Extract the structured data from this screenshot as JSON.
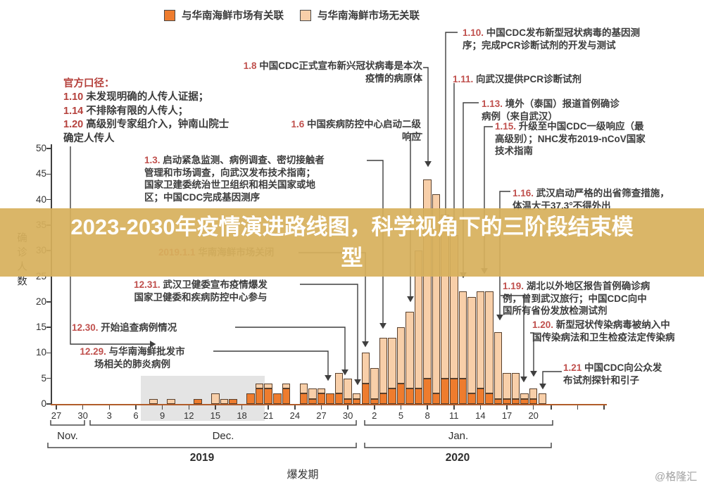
{
  "overlay": {
    "title": "2023-2030年疫情演进路线图，科学视角下的三阶段结束模型",
    "title_lines": [
      "2023-2030年疫情演进路线图，科学视角下的三阶段结束模",
      "型"
    ],
    "band_color": "rgba(215,176,93,0.93)"
  },
  "watermark": "@格隆汇",
  "legend": {
    "linked_label": "与华南海鲜市场有关联",
    "unlinked_label": "与华南海鲜市场无关联"
  },
  "colors": {
    "market_linked_bar": "#ee7c2e",
    "not_linked_bar": "#f8cfa9",
    "red_date": "#c0504d",
    "axis_x": "#b05c2a",
    "highlight_gray": "#e4e4e4"
  },
  "official": {
    "title": "官方口径：",
    "items": [
      [
        "1.10",
        "未发现明确的人传人证据；"
      ],
      [
        "1.14",
        "不排除有限的人传人；"
      ],
      [
        "1.20",
        "高级别专家组介入，钟南山院士确定人传人"
      ]
    ]
  },
  "annotations": {
    "a_1_8": {
      "lines": [
        [
          "1.8",
          "中国CDC正式宣布新兴冠状病毒是本次"
        ],
        [
          "",
          "疫情的病原体"
        ]
      ]
    },
    "a_1_6": {
      "lines": [
        [
          "1.6",
          "中国疾病防控中心启动二级"
        ],
        [
          "",
          "响应"
        ]
      ]
    },
    "a_1_3": {
      "lines": [
        [
          "1.3.",
          "启动紧急监测、病例调查、密切接触者"
        ],
        [
          "",
          "管理和市场调查，向武汉发布技术指南；"
        ],
        [
          "",
          "国家卫建委统治世卫组织和相关国家或地"
        ],
        [
          "",
          "区；中国CDC完成基因测序"
        ]
      ]
    },
    "a_1_10": {
      "lines": [
        [
          "1.10.",
          "中国CDC发布新型冠状病毒的基因测"
        ],
        [
          "",
          "序；完成PCR诊断试剂的开发与测试"
        ]
      ]
    },
    "a_1_11": {
      "lines": [
        [
          "1.11.",
          "向武汉提供PCR诊断试剂"
        ]
      ]
    },
    "a_1_13": {
      "lines": [
        [
          "1.13.",
          "境外（泰国）报道首例确诊"
        ],
        [
          "",
          "病例（来自武汉）"
        ]
      ]
    },
    "a_1_15": {
      "lines": [
        [
          "1.15.",
          "升级至中国CDC一级响应（最"
        ],
        [
          "",
          "高级别）；NHC发布2019-nCoV国家"
        ],
        [
          "",
          "技术指南"
        ]
      ]
    },
    "a_1_16": {
      "lines": [
        [
          "1.16.",
          "武汉启动严格的出省筛查措施，"
        ],
        [
          "",
          "体温大于37.3°不得外出"
        ]
      ]
    },
    "a_1_19": {
      "lines": [
        [
          "1.19.",
          "湖北以外地区报告首例确诊病"
        ],
        [
          "",
          "例，曾到武汉旅行；中国CDC向中"
        ],
        [
          "",
          "国所有省份发放检测试剂"
        ]
      ]
    },
    "a_1_20": {
      "lines": [
        [
          "1.20.",
          "新型冠状传染病毒被纳入中"
        ],
        [
          "",
          "国传染病法和卫生检疫法定传染病"
        ]
      ]
    },
    "a_1_21": {
      "lines": [
        [
          "1.21",
          "中国CDC向公众发"
        ],
        [
          "",
          "布试剂探针和引子"
        ]
      ]
    },
    "a_12_31": {
      "lines": [
        [
          "12.31.",
          "武汉卫健委宣布疫情爆发"
        ],
        [
          "",
          "国家卫健委和疾病防控中心参与"
        ]
      ]
    },
    "a_12_30": {
      "lines": [
        [
          "12.30.",
          "开始追查病例情况"
        ]
      ]
    },
    "a_12_29": {
      "lines": [
        [
          "12.29.",
          "与华南海鲜批发市"
        ],
        [
          "",
          "场相关的肺炎病例"
        ]
      ]
    },
    "a_2019_1_1": {
      "lines": [
        [
          "2019.1.1",
          "华南海鲜市场关闭"
        ]
      ]
    }
  },
  "chart_data": {
    "type": "bar",
    "stacked": true,
    "ylabel": "确诊人数",
    "ylim": [
      0,
      50
    ],
    "yticks": [
      0,
      5,
      10,
      15,
      20,
      25,
      30,
      35,
      40,
      45,
      50
    ],
    "x_ticks": [
      [
        "27",
        0
      ],
      [
        "30",
        3
      ],
      [
        "3",
        6
      ],
      [
        "6",
        9
      ],
      [
        "9",
        12
      ],
      [
        "12",
        15
      ],
      [
        "15",
        18
      ],
      [
        "18",
        21
      ],
      [
        "21",
        24
      ],
      [
        "24",
        27
      ],
      [
        "27",
        30
      ],
      [
        "30",
        33
      ],
      [
        "2",
        36
      ],
      [
        "5",
        39
      ],
      [
        "8",
        42
      ],
      [
        "11",
        45
      ],
      [
        "14",
        48
      ],
      [
        "17",
        51
      ],
      [
        "20",
        54
      ]
    ],
    "minor_end_ticks_days": [
      56,
      59,
      62
    ],
    "month_labels": [
      "Nov.",
      "Dec.",
      "Jan."
    ],
    "year_labels": [
      "2019",
      "2020"
    ],
    "phase_label": "爆发期",
    "categories": [
      "12.8",
      "12.10",
      "12.13",
      "12.15",
      "12.16",
      "12.17",
      "12.19",
      "12.20",
      "12.21",
      "12.22",
      "12.23",
      "12.25",
      "12.26",
      "12.27",
      "12.28",
      "12.29",
      "12.30",
      "12.31",
      "1.1",
      "1.2",
      "1.3",
      "1.4",
      "1.5",
      "1.6",
      "1.7",
      "1.8",
      "1.9",
      "1.10",
      "1.11",
      "1.12",
      "1.13",
      "1.14",
      "1.15",
      "1.16",
      "1.17",
      "1.18",
      "1.19",
      "1.20",
      "1.21"
    ],
    "series": [
      {
        "name": "与华南海鲜市场有关联",
        "values": [
          0,
          0,
          1,
          0,
          0,
          1,
          2,
          3,
          3,
          2,
          3,
          2,
          1,
          2,
          2,
          2,
          1,
          1,
          4,
          1,
          2,
          3,
          4,
          3,
          3,
          5,
          2,
          5,
          5,
          5,
          2,
          3,
          2,
          1,
          1,
          1,
          1,
          1,
          0
        ]
      },
      {
        "name": "与华南海鲜市场无关联",
        "values": [
          1,
          1,
          0,
          2,
          1,
          0,
          0,
          1,
          1,
          0,
          1,
          2,
          2,
          1,
          0,
          4,
          4,
          1,
          6,
          6,
          11,
          10,
          11,
          15,
          27,
          39,
          39,
          32,
          28,
          17,
          19,
          19,
          20,
          13,
          5,
          5,
          1,
          2,
          2
        ]
      }
    ]
  }
}
